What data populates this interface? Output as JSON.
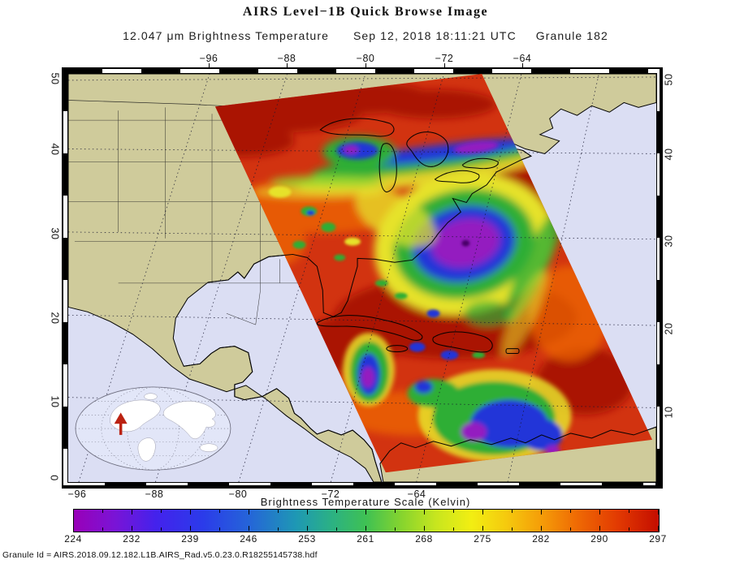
{
  "header": {
    "title": "AIRS Level−1B Quick Browse Image",
    "wavelength_label": "12.047 μm Brightness Temperature",
    "datetime_label": "Sep 12, 2018 18:11:21 UTC",
    "granule_label": "Granule 182"
  },
  "map": {
    "axes": {
      "top": [
        "−96",
        "−88",
        "−80",
        "−72",
        "−64"
      ],
      "bottom": [
        "−96",
        "−88",
        "−80",
        "−72",
        "−64"
      ],
      "left": [
        "50",
        "40",
        "30",
        "20",
        "10",
        "0"
      ],
      "right": [
        "50",
        "40",
        "30",
        "20",
        "10"
      ]
    },
    "features": {
      "swath": "AIRS brightness-temperature swath (diagonal, NE United States to northern South America)",
      "storm": "Hurricane with cold purple/blue cloud tops off the US southeast coast near 31N 73W",
      "inset_marker": "red-arrow-marker over eastern North America on global inset"
    },
    "colors": {
      "ocean": "#dbdef3",
      "land": "#cfcb9b",
      "coastline": "#000000",
      "swath_warm": "#d23310",
      "swath_dark_red": "#a30b00",
      "cloud_green": "#2fae35",
      "cloud_blue": "#2336d8",
      "cloud_purple": "#941cc0",
      "cloud_yellow": "#e6e22c"
    }
  },
  "colorbar": {
    "title": "Brightness Temperature Scale (Kelvin)",
    "tick_labels": [
      "224",
      "232",
      "239",
      "246",
      "253",
      "261",
      "268",
      "275",
      "282",
      "290",
      "297"
    ],
    "min": 224,
    "max": 297,
    "units": "Kelvin"
  },
  "footer": {
    "granule_id_label": "Granule Id = AIRS.2018.09.12.182.L1B.AIRS_Rad.v5.0.23.0.R18255145738.hdf"
  },
  "chart_data": {
    "type": "heatmap",
    "title": "AIRS Level−1B Quick Browse Image",
    "subtitle": "12.047 μm Brightness Temperature  Sep 12, 2018 18:11:21 UTC  Granule 182",
    "x_ticks_longitude": [
      -96,
      -88,
      -80,
      -72,
      -64
    ],
    "y_ticks_latitude": [
      50,
      40,
      30,
      20,
      10,
      0
    ],
    "colorbar": {
      "label": "Brightness Temperature Scale (Kelvin)",
      "ticks": [
        224,
        232,
        239,
        246,
        253,
        261,
        268,
        275,
        282,
        290,
        297
      ],
      "range": [
        224,
        297
      ]
    }
  }
}
